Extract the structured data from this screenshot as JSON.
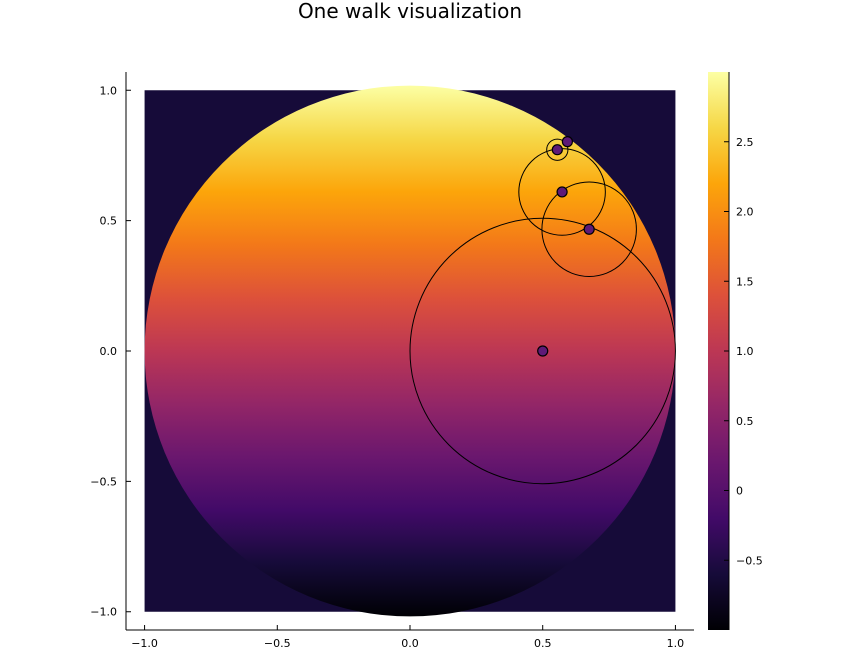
{
  "chart_data": {
    "type": "heatmap",
    "title": "One walk visualization",
    "xlabel": "",
    "ylabel": "",
    "xlim": [
      -1.07,
      1.07
    ],
    "ylim": [
      -1.07,
      1.07
    ],
    "x_ticks": [
      {
        "value": -1.0,
        "label": "−1.0"
      },
      {
        "value": -0.5,
        "label": "−0.5"
      },
      {
        "value": 0.0,
        "label": "0.0"
      },
      {
        "value": 0.5,
        "label": "0.5"
      },
      {
        "value": 1.0,
        "label": "1.0"
      }
    ],
    "y_ticks": [
      {
        "value": -1.0,
        "label": "−1.0"
      },
      {
        "value": -0.5,
        "label": "−0.5"
      },
      {
        "value": 0.0,
        "label": "0.0"
      },
      {
        "value": 0.5,
        "label": "0.5"
      },
      {
        "value": 1.0,
        "label": "1.0"
      }
    ],
    "grid": false,
    "colormap": "inferno",
    "color_range": [
      -1.0,
      3.0
    ],
    "background_value": -0.6,
    "field": {
      "domain": "unit-disk",
      "min": -1.0,
      "max": 3.0
    },
    "colorbar_ticks": [
      {
        "value": -0.5,
        "label": "−0.5"
      },
      {
        "value": 0.0,
        "label": "0"
      },
      {
        "value": 0.5,
        "label": "0.5"
      },
      {
        "value": 1.0,
        "label": "1.0"
      },
      {
        "value": 1.5,
        "label": "1.5"
      },
      {
        "value": 2.0,
        "label": "2.0"
      },
      {
        "value": 2.5,
        "label": "2.5"
      }
    ],
    "walk": [
      {
        "x": 0.5,
        "y": 0.0,
        "r": 0.5
      },
      {
        "x": 0.675,
        "y": 0.467,
        "r": 0.178
      },
      {
        "x": 0.573,
        "y": 0.61,
        "r": 0.163
      },
      {
        "x": 0.555,
        "y": 0.772,
        "r": 0.04
      },
      {
        "x": 0.593,
        "y": 0.803,
        "r": 0.0
      }
    ],
    "marker_color": "#5e1a77",
    "circle_color": "#000000"
  }
}
